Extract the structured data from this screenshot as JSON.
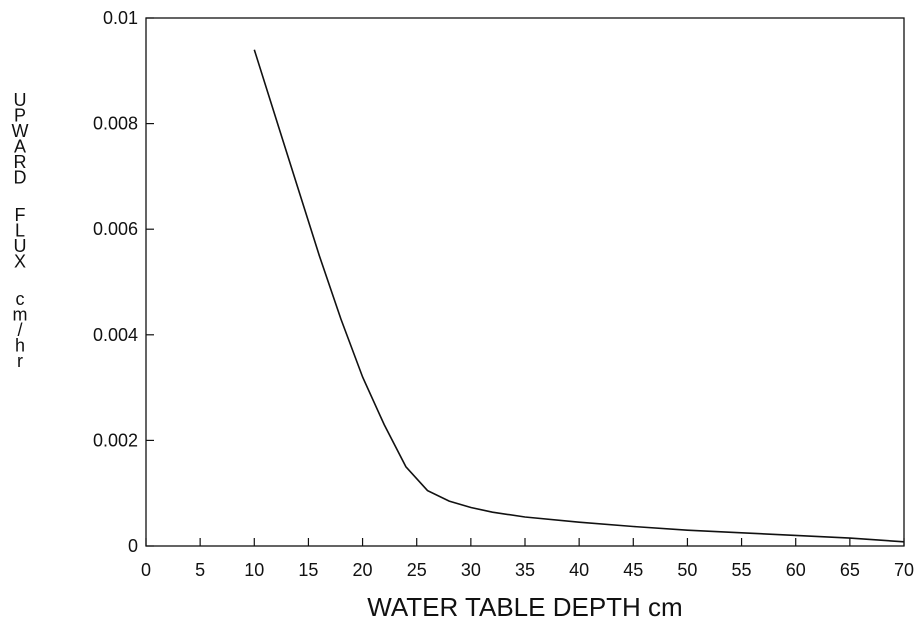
{
  "chart_data": {
    "type": "line",
    "title": "",
    "xlabel": "WATER TABLE DEPTH cm",
    "ylabel": "UPWARD FLUX cm/hr",
    "xlim": [
      0,
      70
    ],
    "ylim": [
      0,
      0.01
    ],
    "x_ticks": [
      0,
      5,
      10,
      15,
      20,
      25,
      30,
      35,
      40,
      45,
      50,
      55,
      60,
      65,
      70
    ],
    "x_tick_labels": [
      "0",
      "5",
      "10",
      "15",
      "20",
      "25",
      "30",
      "35",
      "40",
      "45",
      "50",
      "55",
      "60",
      "65",
      "70"
    ],
    "y_ticks": [
      0,
      0.002,
      0.004,
      0.006,
      0.008,
      0.01
    ],
    "y_tick_labels": [
      "0",
      "0.002",
      "0.004",
      "0.006",
      "0.008",
      "0.01"
    ],
    "grid": false,
    "legend": "none",
    "line_color": "#111111",
    "series": [
      {
        "x": [
          10,
          12,
          14,
          16,
          18,
          20,
          22,
          24,
          26,
          28,
          30,
          32,
          35,
          40,
          45,
          50,
          55,
          60,
          65,
          70
        ],
        "y": [
          0.0094,
          0.0081,
          0.0068,
          0.0055,
          0.0043,
          0.0032,
          0.0023,
          0.0015,
          0.00105,
          0.00085,
          0.00073,
          0.00064,
          0.00055,
          0.00045,
          0.00037,
          0.0003,
          0.00025,
          0.0002,
          0.00015,
          8e-05
        ]
      }
    ]
  }
}
